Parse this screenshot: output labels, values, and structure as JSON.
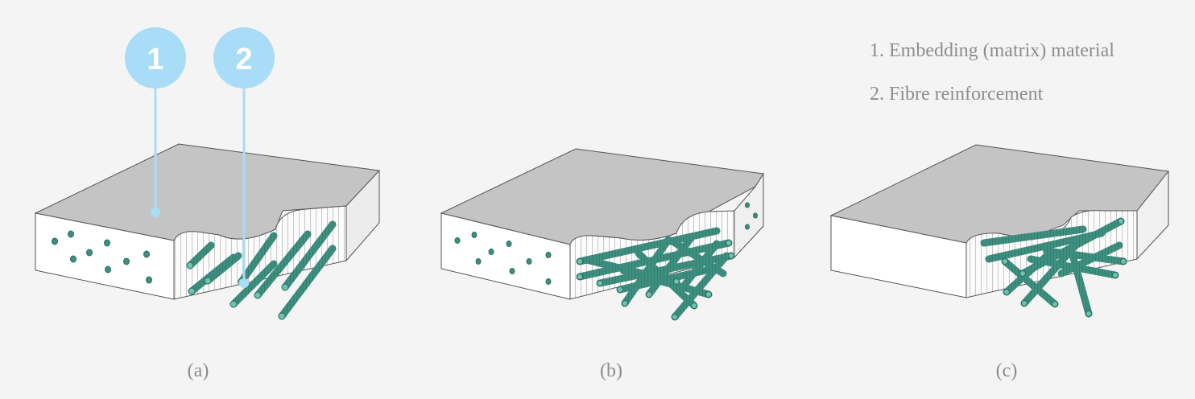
{
  "legend": {
    "item1": "1. Embedding (matrix) material",
    "item2": "2. Fibre reinforcement"
  },
  "callouts": {
    "c1": "1",
    "c2": "2"
  },
  "captions": {
    "a": "(a)",
    "b": "(b)",
    "c": "(c)"
  },
  "colors": {
    "background": "#f4f4f5",
    "top_face": "#c4c4c4",
    "side_face": "#ffffff",
    "outline": "#555555",
    "fibre": "#3d8f7f",
    "fibre_end": "#6fc2b0",
    "callout": "#a9dcf6",
    "text": "#8d8d8d"
  }
}
